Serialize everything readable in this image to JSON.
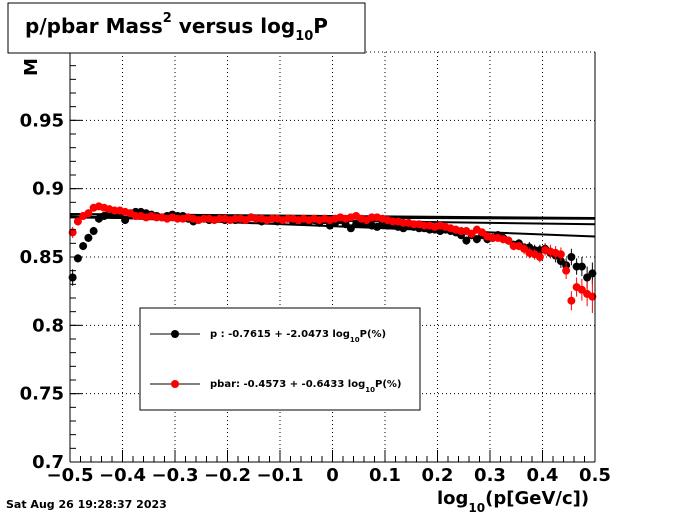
{
  "chart_data": {
    "type": "scatter",
    "title": {
      "main": "p/pbar Mass",
      "sup": "2",
      "mid": " versus log",
      "sub": "10",
      "end": "P"
    },
    "ylabel_fragment": "M",
    "xlabel": {
      "pre": "log",
      "sub": "10",
      "post": "(p[GeV/c])"
    },
    "xlim": [
      -0.5,
      0.5
    ],
    "ylim": [
      0.7,
      1.0
    ],
    "x_ticks": [
      "−0.5",
      "−0.4",
      "−0.3",
      "−0.2",
      "−0.1",
      "0",
      "0.1",
      "0.2",
      "0.3",
      "0.4",
      "0.5"
    ],
    "y_ticks": [
      "0.7",
      "0.75",
      "0.8",
      "0.85",
      "0.9",
      "0.95"
    ],
    "grid": true,
    "legend_position": "lower-left",
    "timestamp": "Sat Aug 26 19:28:37 2023",
    "series": [
      {
        "color": "#000000",
        "legend": {
          "name": "p  : -0.7615 + -2.0473 log",
          "sub": "10",
          "post": "P(%)"
        },
        "fit_lines": [
          {
            "x": [
              -0.5,
              0.5
            ],
            "y": [
              0.8815,
              0.8785
            ]
          },
          {
            "x": [
              -0.5,
              0.5
            ],
            "y": [
              0.879,
              0.874
            ]
          },
          {
            "x": [
              -0.5,
              0.5
            ],
            "y": [
              0.88,
              0.865
            ]
          }
        ],
        "points": [
          [
            -0.495,
            0.835,
            0.006
          ],
          [
            -0.485,
            0.849,
            0.003
          ],
          [
            -0.475,
            0.858,
            0.003
          ],
          [
            -0.465,
            0.864,
            0.003
          ],
          [
            -0.455,
            0.869,
            0.003
          ],
          [
            -0.445,
            0.878,
            0.003
          ],
          [
            -0.435,
            0.88,
            0.002
          ],
          [
            -0.425,
            0.882,
            0.002
          ],
          [
            -0.415,
            0.881,
            0.002
          ],
          [
            -0.405,
            0.881,
            0.002
          ],
          [
            -0.395,
            0.877,
            0.002
          ],
          [
            -0.385,
            0.882,
            0.002
          ],
          [
            -0.375,
            0.883,
            0.002
          ],
          [
            -0.365,
            0.883,
            0.002
          ],
          [
            -0.355,
            0.882,
            0.002
          ],
          [
            -0.345,
            0.881,
            0.002
          ],
          [
            -0.335,
            0.88,
            0.002
          ],
          [
            -0.325,
            0.879,
            0.002
          ],
          [
            -0.315,
            0.88,
            0.002
          ],
          [
            -0.305,
            0.881,
            0.002
          ],
          [
            -0.295,
            0.88,
            0.002
          ],
          [
            -0.285,
            0.88,
            0.002
          ],
          [
            -0.275,
            0.878,
            0.002
          ],
          [
            -0.265,
            0.876,
            0.002
          ],
          [
            -0.255,
            0.878,
            0.002
          ],
          [
            -0.245,
            0.878,
            0.002
          ],
          [
            -0.235,
            0.877,
            0.002
          ],
          [
            -0.225,
            0.878,
            0.002
          ],
          [
            -0.215,
            0.878,
            0.002
          ],
          [
            -0.205,
            0.877,
            0.002
          ],
          [
            -0.195,
            0.878,
            0.002
          ],
          [
            -0.185,
            0.877,
            0.002
          ],
          [
            -0.175,
            0.878,
            0.002
          ],
          [
            -0.165,
            0.877,
            0.002
          ],
          [
            -0.155,
            0.879,
            0.002
          ],
          [
            -0.145,
            0.878,
            0.002
          ],
          [
            -0.135,
            0.876,
            0.002
          ],
          [
            -0.125,
            0.877,
            0.002
          ],
          [
            -0.115,
            0.878,
            0.002
          ],
          [
            -0.105,
            0.876,
            0.002
          ],
          [
            -0.095,
            0.877,
            0.002
          ],
          [
            -0.085,
            0.878,
            0.002
          ],
          [
            -0.075,
            0.876,
            0.002
          ],
          [
            -0.065,
            0.877,
            0.002
          ],
          [
            -0.055,
            0.876,
            0.002
          ],
          [
            -0.045,
            0.876,
            0.002
          ],
          [
            -0.035,
            0.877,
            0.002
          ],
          [
            -0.025,
            0.875,
            0.002
          ],
          [
            -0.015,
            0.877,
            0.002
          ],
          [
            -0.005,
            0.873,
            0.002
          ],
          [
            0.005,
            0.875,
            0.002
          ],
          [
            0.015,
            0.877,
            0.002
          ],
          [
            0.025,
            0.874,
            0.002
          ],
          [
            0.035,
            0.871,
            0.002
          ],
          [
            0.045,
            0.874,
            0.002
          ],
          [
            0.055,
            0.875,
            0.002
          ],
          [
            0.065,
            0.874,
            0.002
          ],
          [
            0.075,
            0.873,
            0.002
          ],
          [
            0.085,
            0.872,
            0.002
          ],
          [
            0.095,
            0.874,
            0.002
          ],
          [
            0.105,
            0.873,
            0.002
          ],
          [
            0.115,
            0.873,
            0.002
          ],
          [
            0.125,
            0.872,
            0.002
          ],
          [
            0.135,
            0.871,
            0.002
          ],
          [
            0.145,
            0.873,
            0.002
          ],
          [
            0.155,
            0.872,
            0.002
          ],
          [
            0.165,
            0.871,
            0.002
          ],
          [
            0.175,
            0.871,
            0.002
          ],
          [
            0.185,
            0.87,
            0.002
          ],
          [
            0.195,
            0.87,
            0.002
          ],
          [
            0.205,
            0.869,
            0.002
          ],
          [
            0.215,
            0.87,
            0.002
          ],
          [
            0.225,
            0.869,
            0.002
          ],
          [
            0.235,
            0.868,
            0.002
          ],
          [
            0.245,
            0.866,
            0.003
          ],
          [
            0.255,
            0.862,
            0.003
          ],
          [
            0.265,
            0.866,
            0.003
          ],
          [
            0.275,
            0.863,
            0.003
          ],
          [
            0.285,
            0.866,
            0.003
          ],
          [
            0.295,
            0.863,
            0.003
          ],
          [
            0.305,
            0.864,
            0.003
          ],
          [
            0.315,
            0.866,
            0.003
          ],
          [
            0.325,
            0.864,
            0.003
          ],
          [
            0.335,
            0.862,
            0.003
          ],
          [
            0.345,
            0.859,
            0.003
          ],
          [
            0.355,
            0.86,
            0.003
          ],
          [
            0.365,
            0.857,
            0.003
          ],
          [
            0.375,
            0.857,
            0.004
          ],
          [
            0.385,
            0.855,
            0.004
          ],
          [
            0.395,
            0.855,
            0.004
          ],
          [
            0.405,
            0.856,
            0.004
          ],
          [
            0.415,
            0.853,
            0.004
          ],
          [
            0.425,
            0.851,
            0.005
          ],
          [
            0.435,
            0.847,
            0.005
          ],
          [
            0.445,
            0.844,
            0.005
          ],
          [
            0.455,
            0.85,
            0.006
          ],
          [
            0.465,
            0.843,
            0.006
          ],
          [
            0.475,
            0.843,
            0.007
          ],
          [
            0.485,
            0.835,
            0.008
          ],
          [
            0.495,
            0.838,
            0.008
          ]
        ]
      },
      {
        "color": "#ff0000",
        "legend": {
          "name": "pbar: -0.4573 + -0.6433 log",
          "sub": "10",
          "post": "P(%)"
        },
        "fit_lines": [
          {
            "x": [
              -0.5,
              0.5
            ],
            "y": [
              0.8795,
              0.878
            ]
          }
        ],
        "points": [
          [
            -0.495,
            0.868,
            0.004
          ],
          [
            -0.485,
            0.876,
            0.003
          ],
          [
            -0.475,
            0.88,
            0.003
          ],
          [
            -0.465,
            0.882,
            0.003
          ],
          [
            -0.455,
            0.886,
            0.002
          ],
          [
            -0.445,
            0.887,
            0.002
          ],
          [
            -0.435,
            0.886,
            0.002
          ],
          [
            -0.425,
            0.885,
            0.002
          ],
          [
            -0.415,
            0.884,
            0.002
          ],
          [
            -0.405,
            0.884,
            0.002
          ],
          [
            -0.395,
            0.883,
            0.002
          ],
          [
            -0.385,
            0.882,
            0.002
          ],
          [
            -0.375,
            0.88,
            0.002
          ],
          [
            -0.365,
            0.88,
            0.002
          ],
          [
            -0.355,
            0.879,
            0.002
          ],
          [
            -0.345,
            0.88,
            0.002
          ],
          [
            -0.335,
            0.879,
            0.002
          ],
          [
            -0.325,
            0.879,
            0.002
          ],
          [
            -0.315,
            0.878,
            0.002
          ],
          [
            -0.305,
            0.879,
            0.002
          ],
          [
            -0.295,
            0.878,
            0.002
          ],
          [
            -0.285,
            0.878,
            0.002
          ],
          [
            -0.275,
            0.879,
            0.002
          ],
          [
            -0.265,
            0.878,
            0.002
          ],
          [
            -0.255,
            0.877,
            0.002
          ],
          [
            -0.245,
            0.878,
            0.002
          ],
          [
            -0.235,
            0.878,
            0.002
          ],
          [
            -0.225,
            0.877,
            0.002
          ],
          [
            -0.215,
            0.878,
            0.002
          ],
          [
            -0.205,
            0.878,
            0.002
          ],
          [
            -0.195,
            0.877,
            0.002
          ],
          [
            -0.185,
            0.878,
            0.002
          ],
          [
            -0.175,
            0.878,
            0.002
          ],
          [
            -0.165,
            0.877,
            0.002
          ],
          [
            -0.155,
            0.879,
            0.002
          ],
          [
            -0.145,
            0.878,
            0.002
          ],
          [
            -0.135,
            0.878,
            0.002
          ],
          [
            -0.125,
            0.877,
            0.002
          ],
          [
            -0.115,
            0.878,
            0.002
          ],
          [
            -0.105,
            0.878,
            0.002
          ],
          [
            -0.095,
            0.877,
            0.002
          ],
          [
            -0.085,
            0.878,
            0.002
          ],
          [
            -0.075,
            0.878,
            0.002
          ],
          [
            -0.065,
            0.877,
            0.002
          ],
          [
            -0.055,
            0.878,
            0.002
          ],
          [
            -0.045,
            0.877,
            0.002
          ],
          [
            -0.035,
            0.878,
            0.002
          ],
          [
            -0.025,
            0.877,
            0.002
          ],
          [
            -0.015,
            0.878,
            0.002
          ],
          [
            -0.005,
            0.877,
            0.002
          ],
          [
            0.005,
            0.878,
            0.002
          ],
          [
            0.015,
            0.879,
            0.002
          ],
          [
            0.025,
            0.878,
            0.002
          ],
          [
            0.035,
            0.879,
            0.002
          ],
          [
            0.045,
            0.88,
            0.002
          ],
          [
            0.055,
            0.878,
            0.002
          ],
          [
            0.065,
            0.877,
            0.002
          ],
          [
            0.075,
            0.879,
            0.002
          ],
          [
            0.085,
            0.879,
            0.002
          ],
          [
            0.095,
            0.878,
            0.002
          ],
          [
            0.105,
            0.877,
            0.002
          ],
          [
            0.115,
            0.876,
            0.002
          ],
          [
            0.125,
            0.876,
            0.002
          ],
          [
            0.135,
            0.875,
            0.002
          ],
          [
            0.145,
            0.875,
            0.002
          ],
          [
            0.155,
            0.874,
            0.002
          ],
          [
            0.165,
            0.874,
            0.002
          ],
          [
            0.175,
            0.873,
            0.002
          ],
          [
            0.185,
            0.873,
            0.002
          ],
          [
            0.195,
            0.872,
            0.002
          ],
          [
            0.205,
            0.873,
            0.002
          ],
          [
            0.215,
            0.872,
            0.002
          ],
          [
            0.225,
            0.871,
            0.002
          ],
          [
            0.235,
            0.87,
            0.003
          ],
          [
            0.245,
            0.869,
            0.003
          ],
          [
            0.255,
            0.869,
            0.003
          ],
          [
            0.265,
            0.867,
            0.003
          ],
          [
            0.275,
            0.87,
            0.003
          ],
          [
            0.285,
            0.868,
            0.003
          ],
          [
            0.295,
            0.865,
            0.003
          ],
          [
            0.305,
            0.864,
            0.003
          ],
          [
            0.315,
            0.864,
            0.003
          ],
          [
            0.325,
            0.863,
            0.003
          ],
          [
            0.335,
            0.862,
            0.003
          ],
          [
            0.345,
            0.858,
            0.003
          ],
          [
            0.355,
            0.858,
            0.003
          ],
          [
            0.365,
            0.856,
            0.004
          ],
          [
            0.375,
            0.853,
            0.004
          ],
          [
            0.385,
            0.852,
            0.004
          ],
          [
            0.395,
            0.85,
            0.004
          ],
          [
            0.405,
            0.855,
            0.004
          ],
          [
            0.415,
            0.854,
            0.005
          ],
          [
            0.425,
            0.853,
            0.005
          ],
          [
            0.435,
            0.852,
            0.005
          ],
          [
            0.445,
            0.84,
            0.006
          ],
          [
            0.455,
            0.818,
            0.007
          ],
          [
            0.465,
            0.828,
            0.007
          ],
          [
            0.475,
            0.826,
            0.008
          ],
          [
            0.485,
            0.823,
            0.009
          ],
          [
            0.495,
            0.821,
            0.012
          ]
        ]
      }
    ]
  }
}
